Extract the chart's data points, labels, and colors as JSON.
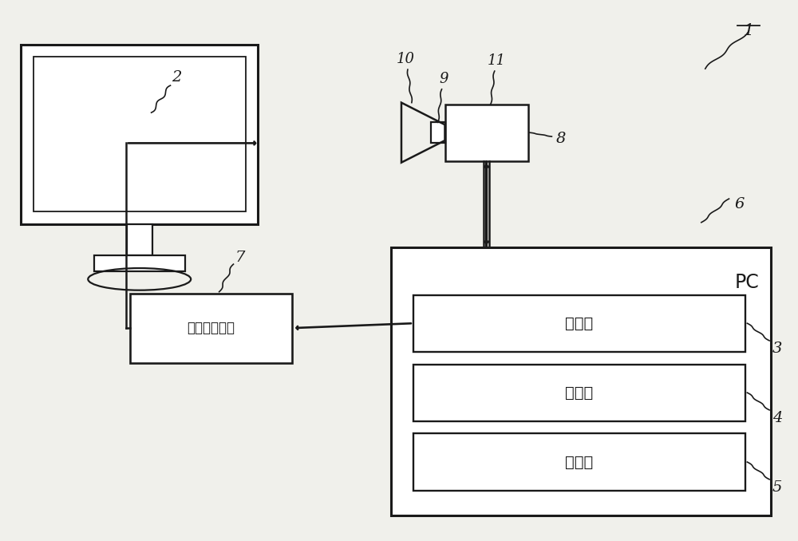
{
  "bg_color": "#f0f0eb",
  "line_color": "#1a1a1a",
  "box_fill": "#ffffff",
  "pc_label": "PC",
  "control": "控制部",
  "compute": "运算部",
  "storage": "存储部",
  "pattern_gen": "图案生成装置",
  "labels": [
    "1",
    "2",
    "3",
    "4",
    "5",
    "6",
    "7",
    "8",
    "9",
    "10",
    "11"
  ]
}
